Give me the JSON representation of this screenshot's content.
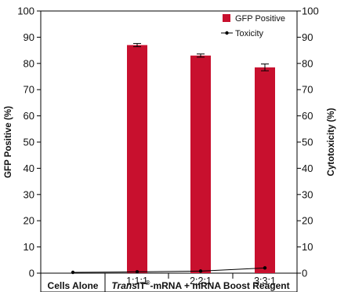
{
  "chart_data": {
    "type": "bar",
    "ylabel_left": "GFP Positive (%)",
    "ylabel_right": "Cytotoxicity (%)",
    "ylim": [
      0,
      100
    ],
    "yticks": [
      0,
      10,
      20,
      30,
      40,
      50,
      60,
      70,
      80,
      90,
      100
    ],
    "categories": [
      "",
      "1:1:1",
      "2:2:1",
      "3:3:1"
    ],
    "group_labels": {
      "cells_alone": "Cells Alone",
      "transit_prefix": "Trans",
      "transit_main": "IT",
      "transit_sup": "®",
      "transit_suffix": "-mRNA + mRNA Boost Reagent"
    },
    "legend_placement": "top-right",
    "series": [
      {
        "name": "GFP Positive",
        "kind": "bar",
        "color": "#c8102e",
        "values": [
          null,
          87,
          83,
          78.5
        ],
        "errors": [
          null,
          0.6,
          0.6,
          1.3
        ]
      },
      {
        "name": "Toxicity",
        "kind": "line",
        "color": "#000000",
        "values": [
          0.3,
          0.5,
          0.8,
          2.0
        ]
      }
    ]
  }
}
